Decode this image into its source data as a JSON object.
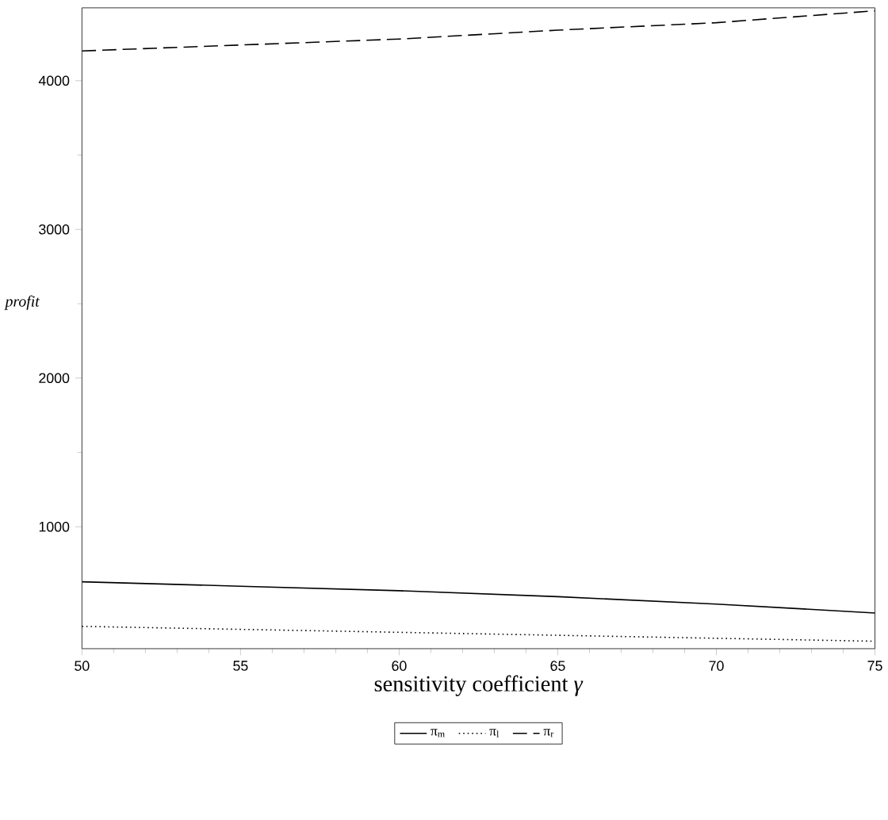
{
  "chart_data": {
    "type": "line",
    "xlabel": "sensitivity coefficient *γ*",
    "ylabel": "*profit*",
    "x": [
      50,
      55,
      60,
      65,
      70,
      75
    ],
    "series": [
      {
        "name": "π$_{m}$",
        "color": "#000000",
        "line_style": "solid",
        "values": [
          630,
          600,
          570,
          530,
          480,
          420
        ]
      },
      {
        "name": "π$_{l}$",
        "color": "#000000",
        "line_style": "dotted",
        "values": [
          330,
          310,
          290,
          270,
          250,
          230
        ]
      },
      {
        "name": "π$_{r}$",
        "color": "#000000",
        "line_style": "dashed",
        "values": [
          4200,
          4240,
          4280,
          4340,
          4390,
          4470
        ]
      }
    ],
    "xlim": [
      50,
      75
    ],
    "ylim": [
      180,
      4490
    ],
    "xticks": [
      50,
      55,
      60,
      65,
      70,
      75
    ],
    "yticks": [
      1000,
      2000,
      3000,
      4000
    ],
    "grid": false,
    "legend": "bottom"
  }
}
